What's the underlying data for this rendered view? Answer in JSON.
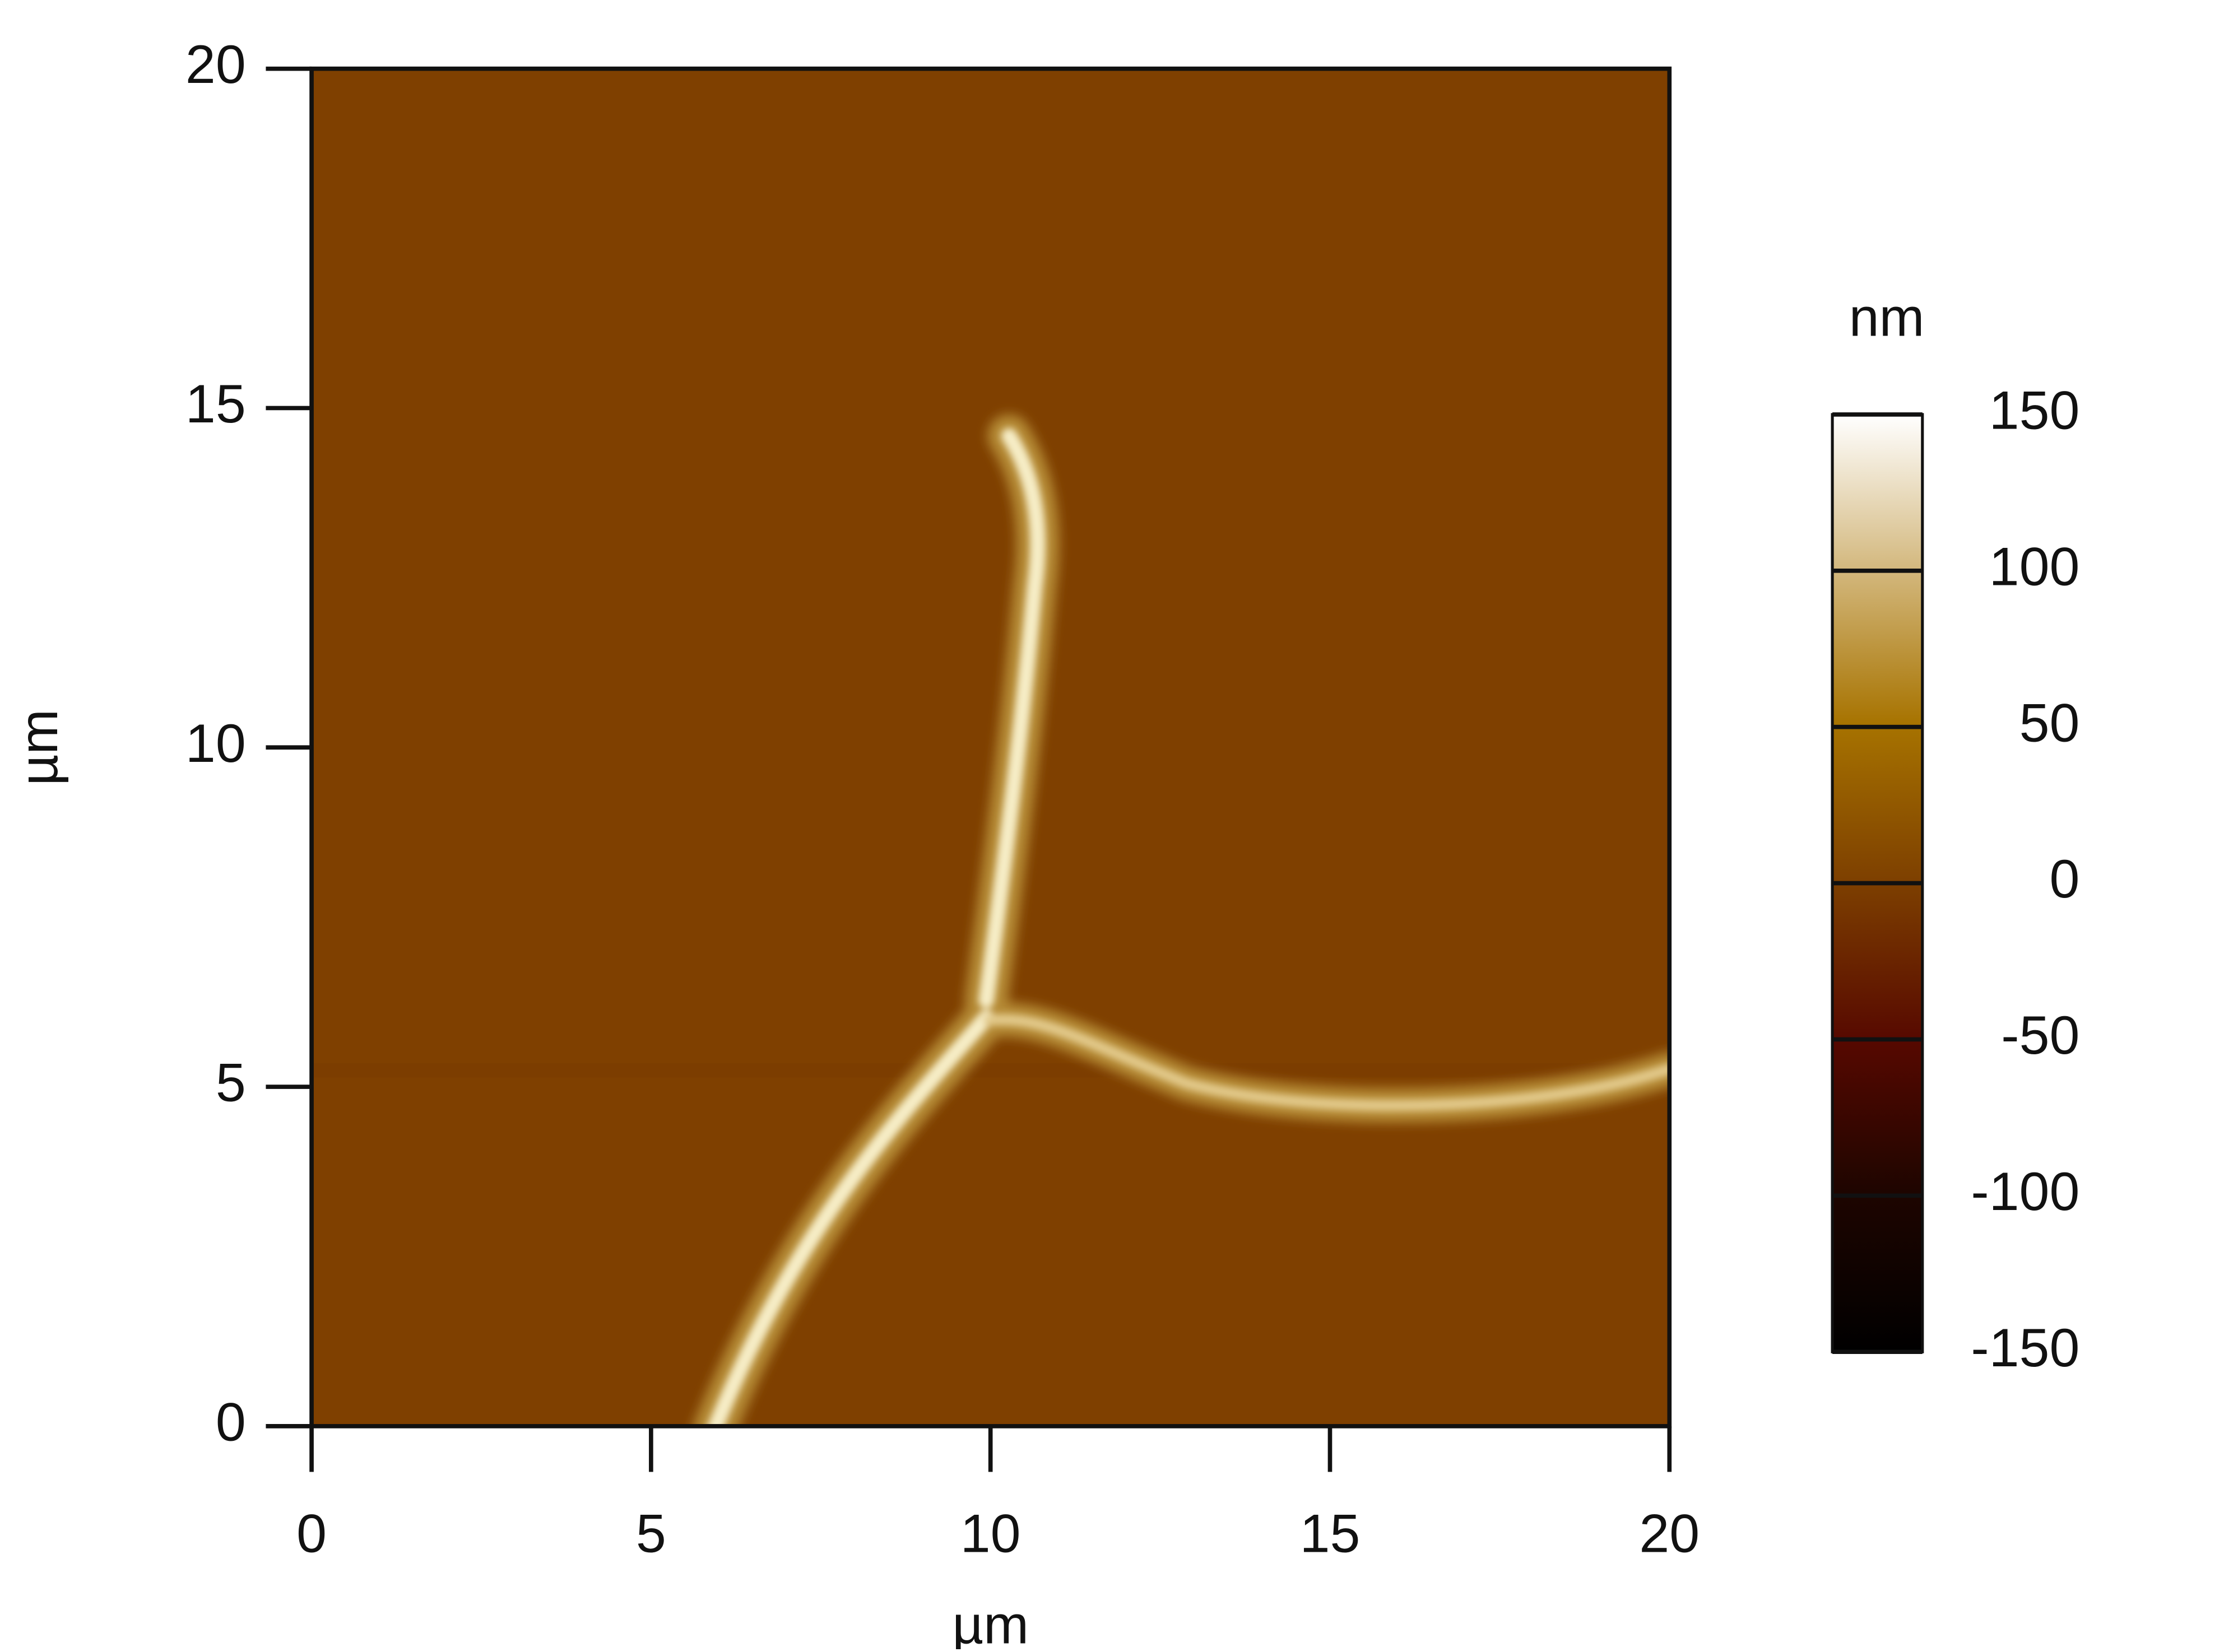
{
  "chart_data": {
    "type": "heatmap",
    "x_label": "µm",
    "y_label": "µm",
    "xlim": [
      0,
      20
    ],
    "ylim": [
      0,
      20
    ],
    "xticks": [
      0,
      5,
      10,
      15,
      20
    ],
    "yticks": [
      0,
      5,
      10,
      15,
      20
    ],
    "colorbar": {
      "label": "nm",
      "lim": [
        -150,
        150
      ],
      "ticks": [
        -150,
        -100,
        -50,
        0,
        50,
        100,
        150
      ]
    }
  }
}
